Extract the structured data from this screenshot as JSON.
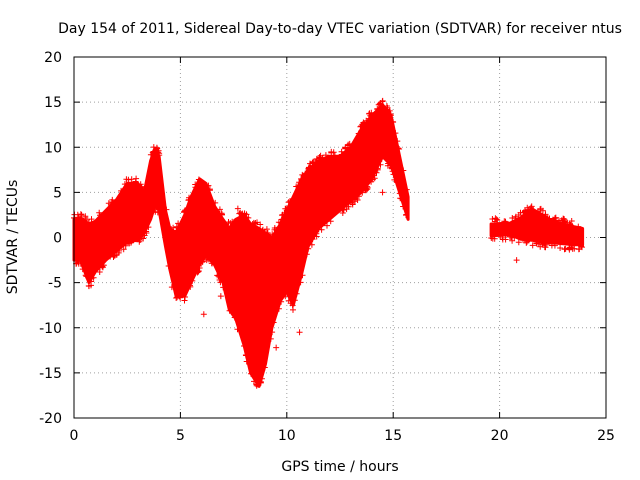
{
  "chart_data": {
    "type": "scatter",
    "title": "Day 154 of 2011, Sidereal Day-to-day VTEC variation (SDTVAR) for receiver ntus",
    "xlabel": "GPS time / hours",
    "ylabel": "SDTVAR / TECUs",
    "xlim": [
      0,
      25
    ],
    "ylim": [
      -20,
      20
    ],
    "xticks": [
      "0",
      "5",
      "10",
      "15",
      "20",
      "25"
    ],
    "yticks": [
      "-20",
      "-15",
      "-10",
      "-5",
      "0",
      "5",
      "10",
      "15",
      "20"
    ],
    "grid": true,
    "marker": "+",
    "series_color": "#ff0000",
    "series": [
      {
        "envelope": [
          {
            "x": 0.0,
            "lo": -2.5,
            "hi": 2.0
          },
          {
            "x": 0.3,
            "lo": -2.5,
            "hi": 2.2
          },
          {
            "x": 0.7,
            "lo": -5.0,
            "hi": 1.5
          },
          {
            "x": 1.0,
            "lo": -3.8,
            "hi": 1.8
          },
          {
            "x": 1.5,
            "lo": -2.5,
            "hi": 3.0
          },
          {
            "x": 2.0,
            "lo": -1.5,
            "hi": 4.2
          },
          {
            "x": 2.5,
            "lo": -0.5,
            "hi": 6.0
          },
          {
            "x": 3.0,
            "lo": -0.3,
            "hi": 6.0
          },
          {
            "x": 3.3,
            "lo": 0.5,
            "hi": 5.0
          },
          {
            "x": 3.6,
            "lo": 2.0,
            "hi": 8.5
          },
          {
            "x": 3.8,
            "lo": 3.5,
            "hi": 9.8
          },
          {
            "x": 4.0,
            "lo": 3.0,
            "hi": 9.0
          },
          {
            "x": 4.3,
            "lo": -1.0,
            "hi": 3.0
          },
          {
            "x": 4.5,
            "lo": -3.5,
            "hi": 1.0
          },
          {
            "x": 4.8,
            "lo": -6.5,
            "hi": 0.5
          },
          {
            "x": 5.2,
            "lo": -6.5,
            "hi": 2.5
          },
          {
            "x": 5.5,
            "lo": -5.0,
            "hi": 4.5
          },
          {
            "x": 5.9,
            "lo": -3.0,
            "hi": 6.5
          },
          {
            "x": 6.2,
            "lo": -2.0,
            "hi": 6.0
          },
          {
            "x": 6.6,
            "lo": -3.0,
            "hi": 3.5
          },
          {
            "x": 7.0,
            "lo": -5.0,
            "hi": 2.0
          },
          {
            "x": 7.3,
            "lo": -8.0,
            "hi": 1.0
          },
          {
            "x": 7.6,
            "lo": -9.0,
            "hi": 2.0
          },
          {
            "x": 8.0,
            "lo": -12.0,
            "hi": 2.5
          },
          {
            "x": 8.3,
            "lo": -15.0,
            "hi": 1.5
          },
          {
            "x": 8.7,
            "lo": -16.5,
            "hi": 1.0
          },
          {
            "x": 9.0,
            "lo": -14.0,
            "hi": 0.5
          },
          {
            "x": 9.3,
            "lo": -10.0,
            "hi": 0.0
          },
          {
            "x": 9.7,
            "lo": -7.0,
            "hi": 1.5
          },
          {
            "x": 10.0,
            "lo": -6.0,
            "hi": 3.0
          },
          {
            "x": 10.3,
            "lo": -7.5,
            "hi": 4.5
          },
          {
            "x": 10.7,
            "lo": -4.0,
            "hi": 6.5
          },
          {
            "x": 11.0,
            "lo": -1.0,
            "hi": 7.5
          },
          {
            "x": 11.5,
            "lo": 1.0,
            "hi": 8.5
          },
          {
            "x": 12.0,
            "lo": 2.0,
            "hi": 9.0
          },
          {
            "x": 12.5,
            "lo": 3.0,
            "hi": 9.0
          },
          {
            "x": 13.0,
            "lo": 4.0,
            "hi": 10.0
          },
          {
            "x": 13.5,
            "lo": 5.0,
            "hi": 12.0
          },
          {
            "x": 14.0,
            "lo": 6.5,
            "hi": 13.5
          },
          {
            "x": 14.5,
            "lo": 9.0,
            "hi": 14.7
          },
          {
            "x": 14.9,
            "lo": 8.0,
            "hi": 13.5
          },
          {
            "x": 15.3,
            "lo": 5.0,
            "hi": 9.0
          },
          {
            "x": 15.7,
            "lo": 2.0,
            "hi": 4.5
          }
        ]
      },
      {
        "envelope": [
          {
            "x": 19.6,
            "lo": 0.2,
            "hi": 1.5
          },
          {
            "x": 20.5,
            "lo": 0.3,
            "hi": 1.6
          },
          {
            "x": 21.0,
            "lo": -0.2,
            "hi": 2.2
          },
          {
            "x": 21.5,
            "lo": -0.3,
            "hi": 3.2
          },
          {
            "x": 22.0,
            "lo": -0.5,
            "hi": 2.5
          },
          {
            "x": 22.5,
            "lo": -0.6,
            "hi": 1.8
          },
          {
            "x": 23.0,
            "lo": -0.7,
            "hi": 1.5
          },
          {
            "x": 23.5,
            "lo": -0.8,
            "hi": 1.2
          },
          {
            "x": 23.9,
            "lo": -0.8,
            "hi": 1.0
          }
        ]
      }
    ],
    "points": [
      {
        "x": 4.6,
        "y": -5.5
      },
      {
        "x": 4.8,
        "y": -6.7
      },
      {
        "x": 6.1,
        "y": -8.5
      },
      {
        "x": 10.6,
        "y": -10.5
      },
      {
        "x": 15.2,
        "y": 8.5
      },
      {
        "x": 14.2,
        "y": 11.5
      },
      {
        "x": 13.8,
        "y": 5.5
      },
      {
        "x": 14.5,
        "y": 5.0
      },
      {
        "x": 20.8,
        "y": -2.5
      },
      {
        "x": 20.9,
        "y": 2.5
      },
      {
        "x": 21.3,
        "y": 3.3
      },
      {
        "x": 22.6,
        "y": -0.9
      },
      {
        "x": 0.8,
        "y": -5.3
      },
      {
        "x": 3.5,
        "y": 3.8
      },
      {
        "x": 8.6,
        "y": -16.3
      },
      {
        "x": 1.1,
        "y": 1.0
      },
      {
        "x": 2.9,
        "y": 5.8
      },
      {
        "x": 7.7,
        "y": 3.2
      },
      {
        "x": 11.9,
        "y": 8.2
      },
      {
        "x": 12.6,
        "y": 9.2
      },
      {
        "x": 9.5,
        "y": -12.2
      },
      {
        "x": 5.0,
        "y": -2.0
      },
      {
        "x": 10.2,
        "y": -4.5
      },
      {
        "x": 6.9,
        "y": -6.5
      }
    ]
  }
}
